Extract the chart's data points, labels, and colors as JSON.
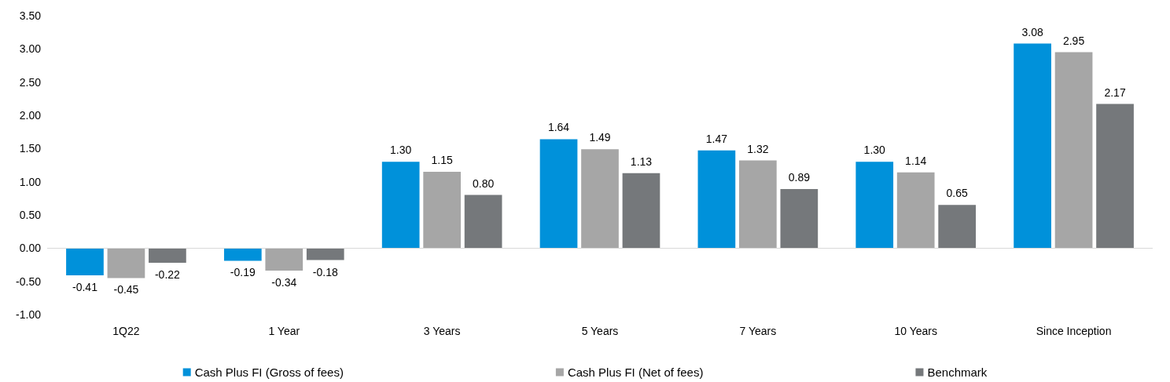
{
  "chart_data": {
    "type": "bar",
    "categories": [
      "1Q22",
      "1 Year",
      "3 Years",
      "5 Years",
      "7 Years",
      "10 Years",
      "Since Inception"
    ],
    "series": [
      {
        "name": "Cash Plus FI (Gross of fees)",
        "color": "#0091da",
        "values": [
          -0.41,
          -0.19,
          1.3,
          1.64,
          1.47,
          1.3,
          3.08
        ],
        "value_labels": [
          "-0.41",
          "-0.19",
          "1.30",
          "1.64",
          "1.47",
          "1.30",
          "3.08"
        ]
      },
      {
        "name": "Cash Plus FI (Net of fees)",
        "color": "#a6a6a6",
        "values": [
          -0.45,
          -0.34,
          1.15,
          1.49,
          1.32,
          1.14,
          2.95
        ],
        "value_labels": [
          "-0.45",
          "-0.34",
          "1.15",
          "1.49",
          "1.32",
          "1.14",
          "2.95"
        ]
      },
      {
        "name": "Benchmark",
        "color": "#75787b",
        "values": [
          -0.22,
          -0.18,
          0.8,
          1.13,
          0.89,
          0.65,
          2.17
        ],
        "value_labels": [
          "-0.22",
          "-0.18",
          "0.80",
          "1.13",
          "0.89",
          "0.65",
          "2.17"
        ]
      }
    ],
    "ylim": [
      -1,
      3.5
    ],
    "yticks": [
      {
        "value": -1,
        "label": "-1.00"
      },
      {
        "value": -0.5,
        "label": "-0.50"
      },
      {
        "value": 0,
        "label": "0.00"
      },
      {
        "value": 0.5,
        "label": "0.50"
      },
      {
        "value": 1,
        "label": "1.00"
      },
      {
        "value": 1.5,
        "label": "1.50"
      },
      {
        "value": 2,
        "label": "2.00"
      },
      {
        "value": 2.5,
        "label": "2.50"
      },
      {
        "value": 3,
        "label": "3.00"
      },
      {
        "value": 3.5,
        "label": "3.50"
      }
    ],
    "ref_lines": [
      {
        "axis": "y",
        "value": 0,
        "color": "#d9d9d9"
      }
    ],
    "grid": false,
    "legend": "bottom"
  }
}
